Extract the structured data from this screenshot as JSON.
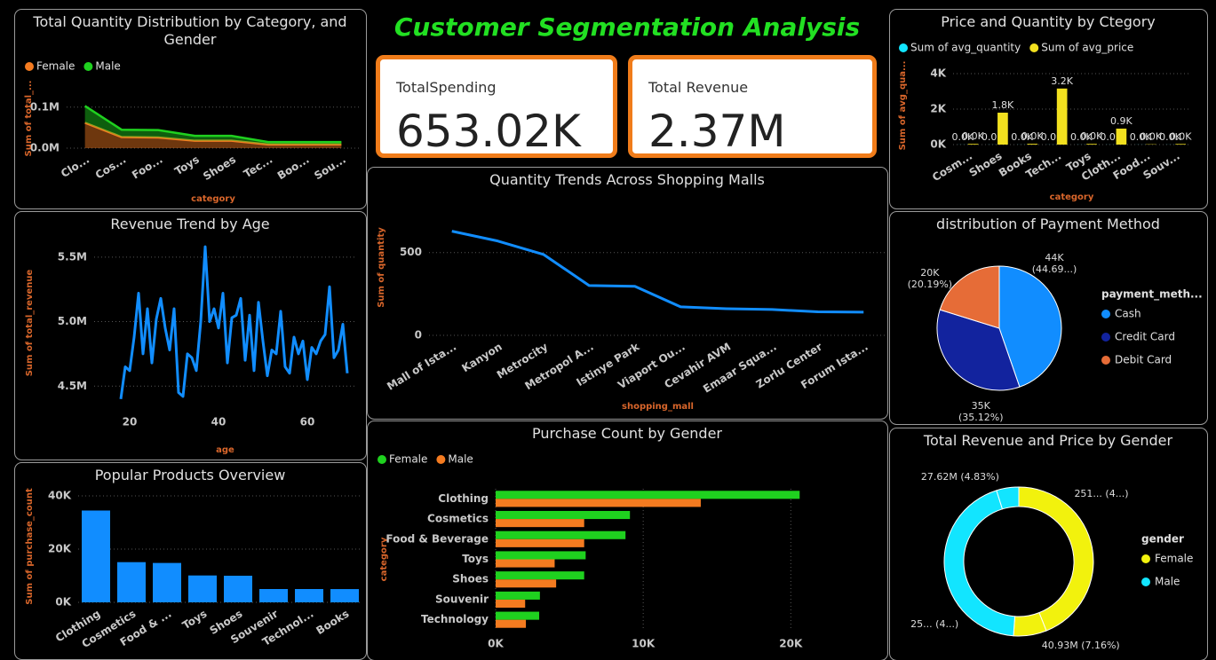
{
  "title": "Customer Segmentation Analysis",
  "cards": [
    {
      "label": "TotalSpending",
      "value": "653.02K"
    },
    {
      "label": "Total Revenue",
      "value": "2.37M"
    }
  ],
  "chart_data": [
    {
      "type": "area",
      "title": "Total Quantity Distribution by Category, and Gender",
      "x_label": "category",
      "y_label": "Sum of total_...",
      "categories": [
        "Clo...",
        "Cos...",
        "Foo...",
        "Toys",
        "Shoes",
        "Tec...",
        "Boo...",
        "Sou..."
      ],
      "series": [
        {
          "name": "Female",
          "color": "#f47b20",
          "values": [
            62000,
            27000,
            26000,
            18000,
            18000,
            9000,
            9000,
            9000
          ]
        },
        {
          "name": "Male",
          "color": "#1fd11f",
          "values": [
            41000,
            18000,
            18000,
            12000,
            12000,
            6000,
            6000,
            6000
          ]
        }
      ],
      "ylim": [
        0,
        145000
      ],
      "yticks": [
        {
          "value": 0,
          "label": "0.0M"
        },
        {
          "value": 100000,
          "label": "0.1M"
        }
      ],
      "grid": true
    },
    {
      "type": "line",
      "title": "Revenue Trend by Age",
      "x_label": "age",
      "y_label": "Sum of total_revenue",
      "color": "#118dff",
      "x": [
        18,
        19,
        20,
        21,
        22,
        23,
        24,
        25,
        26,
        27,
        28,
        29,
        30,
        31,
        32,
        33,
        34,
        35,
        36,
        37,
        38,
        39,
        40,
        41,
        42,
        43,
        44,
        45,
        46,
        47,
        48,
        49,
        50,
        51,
        52,
        53,
        54,
        55,
        56,
        57,
        58,
        59,
        60,
        61,
        62,
        63,
        64,
        65,
        66,
        67,
        68,
        69
      ],
      "values": [
        4400000,
        4650000,
        4620000,
        4880000,
        5220000,
        4750000,
        5100000,
        4680000,
        5020000,
        5180000,
        4950000,
        4780000,
        5100000,
        4450000,
        4420000,
        4750000,
        4720000,
        4620000,
        5000000,
        5580000,
        5000000,
        5100000,
        4950000,
        5220000,
        4680000,
        5030000,
        5050000,
        5180000,
        4700000,
        5050000,
        4620000,
        5150000,
        4850000,
        4580000,
        4780000,
        4750000,
        5080000,
        4650000,
        4600000,
        4880000,
        4750000,
        4850000,
        4550000,
        4800000,
        4750000,
        4850000,
        4900000,
        5270000,
        4720000,
        4780000,
        4980000,
        4600000
      ],
      "xlim": [
        12,
        71
      ],
      "xticks": [
        20,
        40,
        60
      ],
      "ylim": [
        4330000,
        5650000
      ],
      "yticks": [
        {
          "value": 4500000,
          "label": "4.5M"
        },
        {
          "value": 5000000,
          "label": "5.0M"
        },
        {
          "value": 5500000,
          "label": "5.5M"
        }
      ],
      "grid": true
    },
    {
      "type": "bar",
      "title": "Popular Products Overview",
      "y_label": "Sum of purchase_count",
      "color": "#118dff",
      "categories": [
        "Clothing",
        "Cosmetics",
        "Food & ...",
        "Toys",
        "Shoes",
        "Souvenir",
        "Technol...",
        "Books"
      ],
      "values": [
        34500,
        15100,
        14800,
        10100,
        10000,
        5000,
        5000,
        4980
      ],
      "ylim": [
        0,
        42000
      ],
      "yticks": [
        {
          "value": 0,
          "label": "0K"
        },
        {
          "value": 20000,
          "label": "20K"
        },
        {
          "value": 40000,
          "label": "40K"
        }
      ],
      "grid": true
    },
    {
      "type": "line",
      "title": "Quantity Trends Across Shopping Malls",
      "x_label": "shopping_mall",
      "y_label": "Sum of quantity",
      "color": "#118dff",
      "categories": [
        "Mall of Ista...",
        "Kanyon",
        "Metrocity",
        "Metropol A...",
        "Istinye Park",
        "Viaport Ou...",
        "Cevahir AVM",
        "Emaar Squa...",
        "Zorlu Center",
        "Forum Ista..."
      ],
      "values": [
        629,
        570,
        489,
        301,
        296,
        172,
        161,
        156,
        142,
        140
      ],
      "ylim": [
        0,
        820
      ],
      "yticks": [
        0,
        500
      ],
      "grid": true
    },
    {
      "type": "hbar",
      "title": "Purchase Count by Gender",
      "y_label": "category",
      "categories": [
        "Clothing",
        "Cosmetics",
        "Food & Beverage",
        "Toys",
        "Shoes",
        "Souvenir",
        "Technology"
      ],
      "series": [
        {
          "name": "Female",
          "color": "#1fd11f",
          "values": [
            20600,
            9100,
            8800,
            6100,
            6000,
            3000,
            2950
          ]
        },
        {
          "name": "Male",
          "color": "#f47b20",
          "values": [
            13900,
            6000,
            6000,
            4000,
            4100,
            2000,
            2050
          ]
        }
      ],
      "xlim": [
        0,
        26000
      ],
      "xticks": [
        {
          "value": 0,
          "label": "0K"
        },
        {
          "value": 10000,
          "label": "10K"
        },
        {
          "value": 20000,
          "label": "20K"
        }
      ],
      "grid": true
    },
    {
      "type": "bar",
      "title": "Price and Quantity by Ctegory",
      "x_label": "category",
      "y_label": "Sum of avg_qua...",
      "categories": [
        "Cosm...",
        "Shoes",
        "Books",
        "Tech...",
        "Toys",
        "Cloth...",
        "Food...",
        "Souv..."
      ],
      "series": [
        {
          "name": "Sum of avg_quantity",
          "color": "#12e5ff",
          "values": [
            3,
            3,
            3,
            3,
            3,
            3,
            3,
            3
          ],
          "value_labels": [
            "0.0K",
            "0.0K",
            "0.0K",
            "0.0K",
            "0.0K",
            "0.0K",
            "0.0K",
            "0.0K"
          ]
        },
        {
          "name": "Sum of avg_price",
          "color": "#f2e01f",
          "values": [
            40,
            1800,
            45,
            3160,
            40,
            901,
            16,
            35
          ],
          "value_labels": [
            "0.0K",
            "1.8K",
            "0.0K",
            "3.2K",
            "0.0K",
            "0.9K",
            "0.0K",
            "0.0K"
          ]
        }
      ],
      "ylim": [
        0,
        4400
      ],
      "yticks": [
        {
          "value": 0,
          "label": "0K"
        },
        {
          "value": 2000,
          "label": "2K"
        },
        {
          "value": 4000,
          "label": "4K"
        }
      ],
      "grid": true
    },
    {
      "type": "pie",
      "title": "distribution of Payment Method",
      "legend_title": "payment_meth...",
      "categories": [
        "Cash",
        "Credit Card",
        "Debit Card"
      ],
      "colors": [
        "#118dff",
        "#12239e",
        "#e66c37"
      ],
      "values": [
        44447,
        34931,
        20079
      ],
      "value_labels": [
        "44K (44.69...)",
        "35K (35.12%)",
        "20K (20.19%)"
      ]
    },
    {
      "type": "donut",
      "title": "Total Revenue and Price by Gender",
      "legend_title": "gender",
      "series": [
        {
          "name": "Female",
          "color": "#f2f20d",
          "values": [
            251500000,
            40930000
          ],
          "value_labels": [
            "251... (4...)",
            "40.93M (7.16%)"
          ]
        },
        {
          "name": "Male",
          "color": "#12e5ff",
          "values": [
            251750000,
            27620000
          ],
          "value_labels": [
            "25... (4...)",
            "27.62M (4.83%)"
          ]
        }
      ]
    }
  ]
}
